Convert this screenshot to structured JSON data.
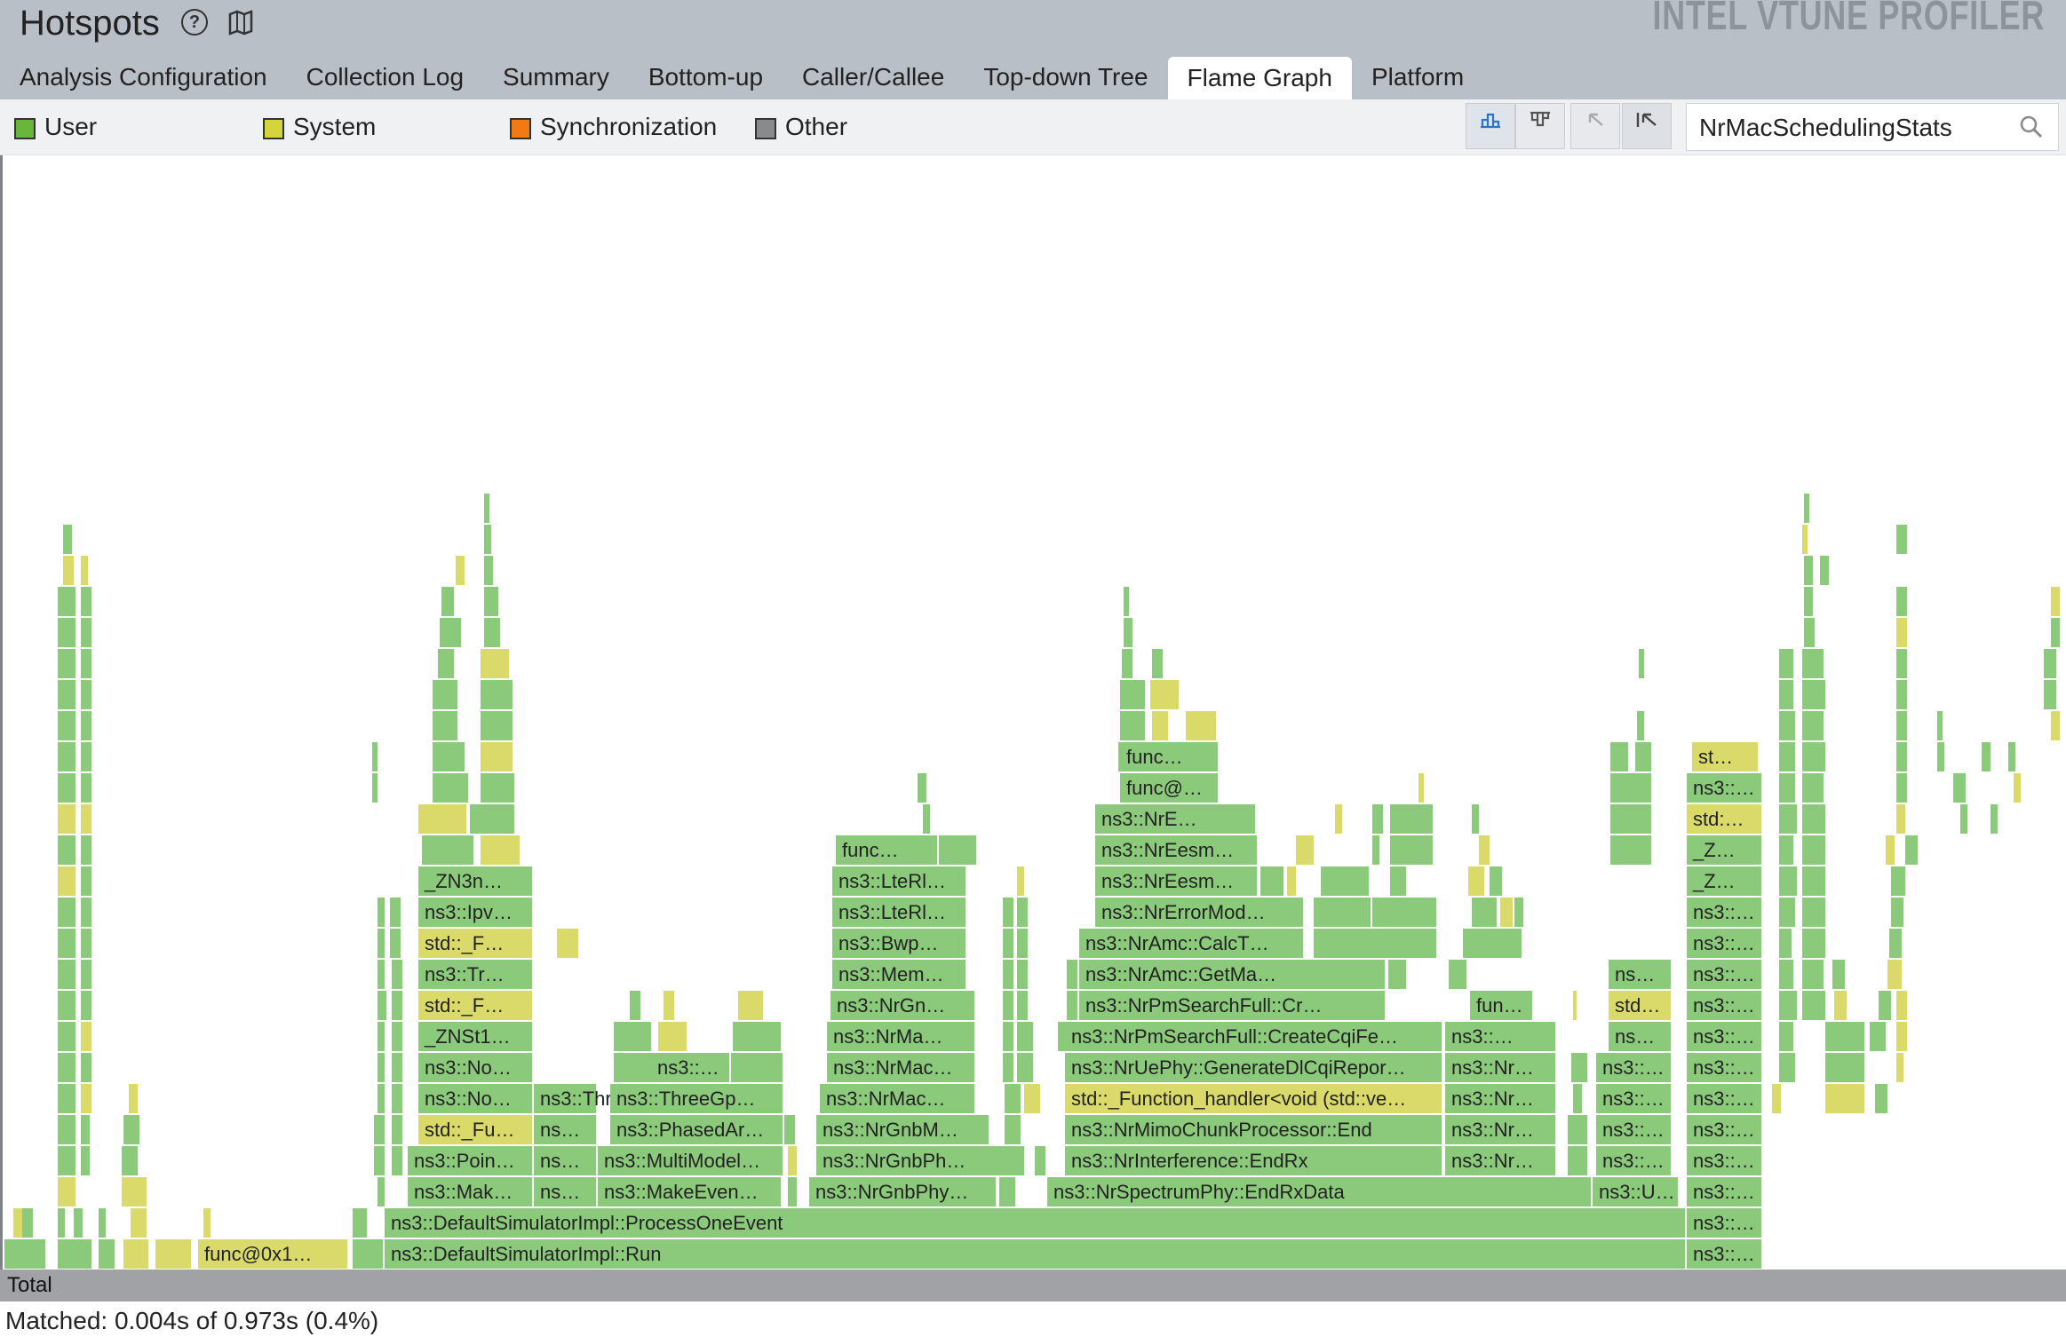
{
  "header": {
    "title": "Hotspots",
    "brand": "INTEL VTUNE PROFILER",
    "help_icon": "help-circle-icon",
    "book_icon": "book-map-icon"
  },
  "tabs": [
    {
      "label": "Analysis Configuration",
      "active": false
    },
    {
      "label": "Collection Log",
      "active": false
    },
    {
      "label": "Summary",
      "active": false
    },
    {
      "label": "Bottom-up",
      "active": false
    },
    {
      "label": "Caller/Callee",
      "active": false
    },
    {
      "label": "Top-down Tree",
      "active": false
    },
    {
      "label": "Flame Graph",
      "active": true
    },
    {
      "label": "Platform",
      "active": false
    }
  ],
  "legend": [
    {
      "label": "User",
      "color": "#69b63a"
    },
    {
      "label": "System",
      "color": "#d4d43e"
    },
    {
      "label": "Synchronization",
      "color": "#f27a12"
    },
    {
      "label": "Other",
      "color": "#8a8a8a"
    }
  ],
  "toolbar": {
    "buttons": [
      "flame-view-icon",
      "icicle-view-icon",
      "back-icon",
      "reset-zoom-icon"
    ],
    "search_value": "NrMacSchedulingStats"
  },
  "colors": {
    "user": "#8bc97b",
    "system": "#dada6a",
    "other": "#a0a2a5"
  },
  "flame": {
    "total_label": "Total",
    "frames": [
      {
        "label": "func@0x1…",
        "type": "system"
      },
      {
        "label": "ns3::DefaultSimulatorImpl::Run",
        "type": "user"
      },
      {
        "label": "ns3::DefaultSimulatorImpl::ProcessOneEvent",
        "type": "user"
      },
      {
        "label": "ns3::…",
        "type": "user"
      },
      {
        "label": "ns3::Mak…",
        "type": "user"
      },
      {
        "label": "ns…",
        "type": "user"
      },
      {
        "label": "ns3::MakeEven…",
        "type": "user"
      },
      {
        "label": "ns3::NrGnbPhy…",
        "type": "user"
      },
      {
        "label": "ns3::NrSpectrumPhy::EndRxData",
        "type": "user"
      },
      {
        "label": "ns3::U…",
        "type": "user"
      },
      {
        "label": "ns3::Poin…",
        "type": "user"
      },
      {
        "label": "ns3::MultiModel…",
        "type": "user"
      },
      {
        "label": "ns3::NrGnbPh…",
        "type": "user"
      },
      {
        "label": "ns3::NrInterference::EndRx",
        "type": "user"
      },
      {
        "label": "ns3::Nr…",
        "type": "user"
      },
      {
        "label": "std::_Fu…",
        "type": "system"
      },
      {
        "label": "ns3::PhasedAr…",
        "type": "user"
      },
      {
        "label": "ns3::NrGnbM…",
        "type": "user"
      },
      {
        "label": "ns3::NrMimoChunkProcessor::End",
        "type": "user"
      },
      {
        "label": "ns3::No…",
        "type": "user"
      },
      {
        "label": "ns3::ThreeGp…",
        "type": "user"
      },
      {
        "label": "ns3::NrMac…",
        "type": "user"
      },
      {
        "label": "std::_Function_handler<void (std::ve…",
        "type": "system"
      },
      {
        "label": "ns3::NrUePhy::GenerateDlCqiRepor…",
        "type": "user"
      },
      {
        "label": "ns3::…",
        "type": "user"
      },
      {
        "label": "ns3::NrMa…",
        "type": "user"
      },
      {
        "label": "ns3::NrPmSearchFull::CreateCqiFe…",
        "type": "user"
      },
      {
        "label": "ns…",
        "type": "user"
      },
      {
        "label": "_ZNSt1…",
        "type": "user"
      },
      {
        "label": "ns3::NrGn…",
        "type": "user"
      },
      {
        "label": "ns3::NrPmSearchFull::Cr…",
        "type": "user"
      },
      {
        "label": "fun…",
        "type": "user"
      },
      {
        "label": "std…",
        "type": "system"
      },
      {
        "label": "std::_F…",
        "type": "system"
      },
      {
        "label": "ns3::Tr…",
        "type": "user"
      },
      {
        "label": "ns3::Mem…",
        "type": "user"
      },
      {
        "label": "ns3::NrAmc::GetMa…",
        "type": "user"
      },
      {
        "label": "ns3::Bwp…",
        "type": "user"
      },
      {
        "label": "ns3::NrAmc::CalcT…",
        "type": "user"
      },
      {
        "label": "ns3::Ipv…",
        "type": "user"
      },
      {
        "label": "ns3::LteRl…",
        "type": "user"
      },
      {
        "label": "ns3::NrErrorMod…",
        "type": "user"
      },
      {
        "label": "_ZN3n…",
        "type": "user"
      },
      {
        "label": "ns3::NrEesm…",
        "type": "user"
      },
      {
        "label": "_Z…",
        "type": "user"
      },
      {
        "label": "func…",
        "type": "user"
      },
      {
        "label": "ns3::NrE…",
        "type": "user"
      },
      {
        "label": "std:…",
        "type": "system"
      },
      {
        "label": "func@…",
        "type": "user"
      },
      {
        "label": "st…",
        "type": "system"
      }
    ]
  },
  "status": {
    "matched": "Matched: 0.004s of 0.973s (0.4%)"
  }
}
